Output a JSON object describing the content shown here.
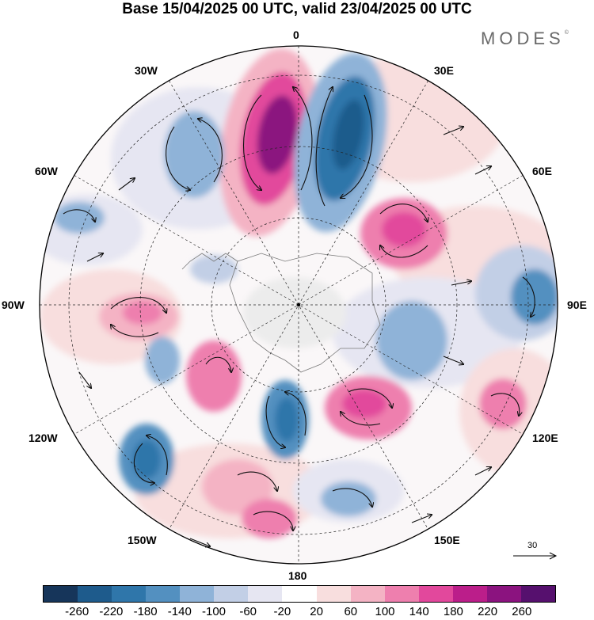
{
  "title": "Base 15/04/2025 00 UTC, valid 23/04/2025 00 UTC",
  "brand": "MODES",
  "brand_mark": "©",
  "map": {
    "projection": "south-polar-stereographic",
    "longitude_labels": {
      "n": "0",
      "nne": "30E",
      "ene": "60E",
      "e": "90E",
      "ese": "120E",
      "sse": "150E",
      "s": "180",
      "ssw": "150W",
      "wsw": "120W",
      "w": "90W",
      "wnw": "60W",
      "nnw": "30W"
    },
    "reference_vector_label": "30",
    "field": "anomaly (shaded) with wind vectors"
  },
  "colorbar": {
    "tick_labels": [
      "-260",
      "-220",
      "-180",
      "-140",
      "-100",
      "-60",
      "-20",
      "20",
      "60",
      "100",
      "140",
      "180",
      "220",
      "260"
    ],
    "colors": [
      "#16355a",
      "#1e5b8c",
      "#2f76aa",
      "#5390c0",
      "#8fb3d8",
      "#c2cfe6",
      "#e6e6f2",
      "#ffffff",
      "#f8dede",
      "#f4b3c4",
      "#ee7fae",
      "#e2489c",
      "#bb1e8a",
      "#8b137f",
      "#56106e"
    ]
  }
}
